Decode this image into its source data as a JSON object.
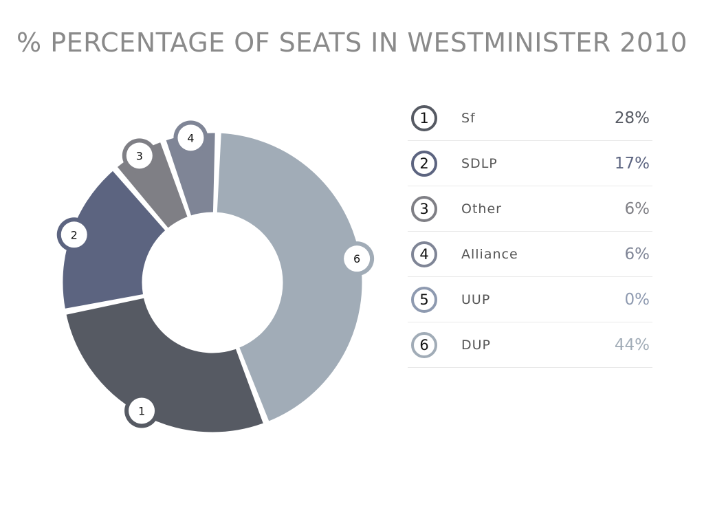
{
  "chart_data": {
    "type": "pie",
    "title": "% PERCENTAGE OF SEATS IN WESTMINISTER 2010",
    "slices": [
      {
        "index": "1",
        "label": "Sf",
        "value": 28,
        "value_label": "28%",
        "color": "#565a63"
      },
      {
        "index": "2",
        "label": "SDLP",
        "value": 17,
        "value_label": "17%",
        "color": "#5c6480"
      },
      {
        "index": "3",
        "label": "Other",
        "value": 6,
        "value_label": "6%",
        "color": "#7f7f85"
      },
      {
        "index": "4",
        "label": "Alliance",
        "value": 6,
        "value_label": "6%",
        "color": "#7f8596"
      },
      {
        "index": "5",
        "label": "UUP",
        "value": 0,
        "value_label": "0%",
        "color": "#8e9ab0"
      },
      {
        "index": "6",
        "label": "DUP",
        "value": 44,
        "value_label": "44%",
        "color": "#a1acb7"
      }
    ]
  }
}
